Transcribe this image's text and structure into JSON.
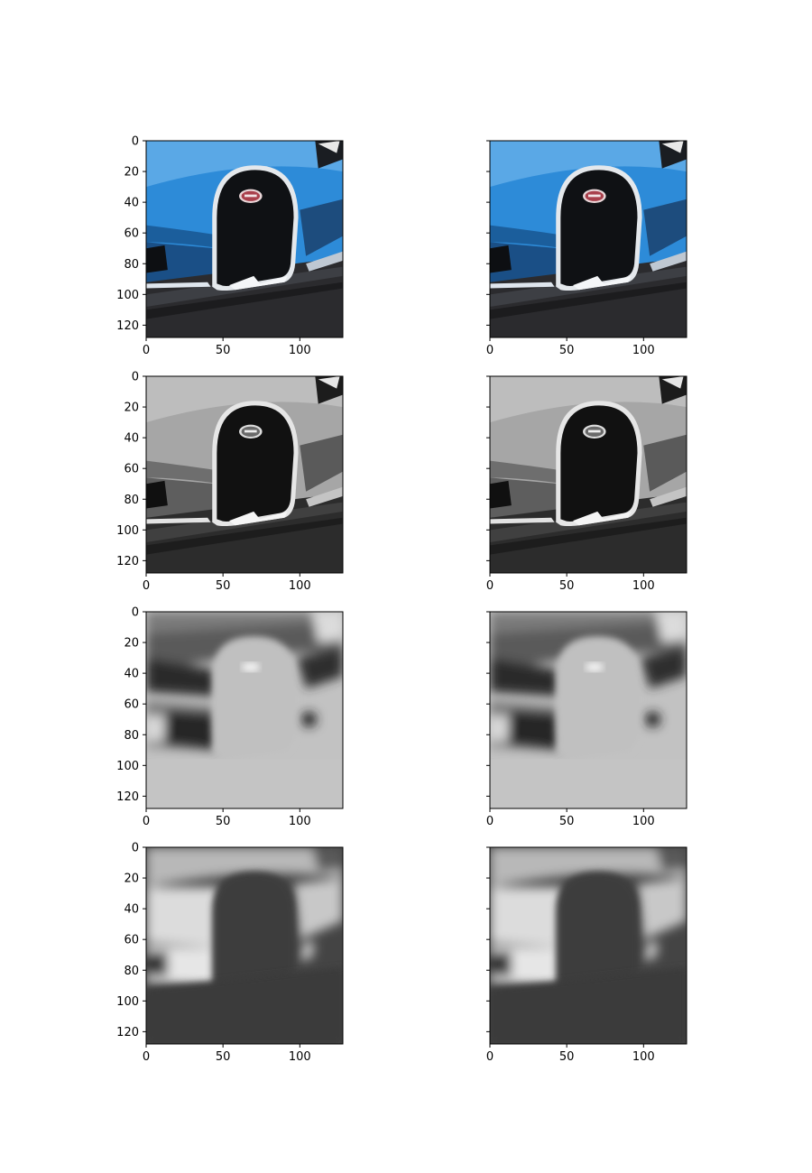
{
  "chart_data": {
    "type": "image_grid",
    "rows": 4,
    "cols": 2,
    "panels": [
      {
        "row": 0,
        "col": 0,
        "content": "bugatti-front-color",
        "xlim": [
          0,
          128
        ],
        "ylim": [
          128,
          0
        ]
      },
      {
        "row": 0,
        "col": 1,
        "content": "bugatti-front-color",
        "xlim": [
          0,
          128
        ],
        "ylim": [
          128,
          0
        ]
      },
      {
        "row": 1,
        "col": 0,
        "content": "bugatti-front-grayscale",
        "xlim": [
          0,
          128
        ],
        "ylim": [
          128,
          0
        ]
      },
      {
        "row": 1,
        "col": 1,
        "content": "bugatti-front-grayscale",
        "xlim": [
          0,
          128
        ],
        "ylim": [
          128,
          0
        ]
      },
      {
        "row": 2,
        "col": 0,
        "content": "bright-grille-channel-map",
        "xlim": [
          0,
          128
        ],
        "ylim": [
          128,
          0
        ]
      },
      {
        "row": 2,
        "col": 1,
        "content": "bright-grille-channel-map",
        "xlim": [
          0,
          128
        ],
        "ylim": [
          128,
          0
        ]
      },
      {
        "row": 3,
        "col": 0,
        "content": "dark-grille-channel-map",
        "xlim": [
          0,
          128
        ],
        "ylim": [
          128,
          0
        ]
      },
      {
        "row": 3,
        "col": 1,
        "content": "dark-grille-channel-map",
        "xlim": [
          0,
          128
        ],
        "ylim": [
          128,
          0
        ]
      }
    ],
    "x_ticks": [
      "0",
      "50",
      "100"
    ],
    "x_tick_values": [
      0,
      50,
      100
    ],
    "y_ticks": [
      "0",
      "20",
      "40",
      "60",
      "80",
      "100",
      "120"
    ],
    "y_tick_values": [
      0,
      20,
      40,
      60,
      80,
      100,
      120
    ],
    "y_tick_labels_shown_on_col": 0
  },
  "colors": {
    "car_blue": "#2f8fdc",
    "car_blue_dark": "#1d5fa0",
    "grille_black": "#101214",
    "chrome": "#e9ecef",
    "asphalt": "#2a2a2c",
    "gray_body": "#a8a8a8",
    "map_light": "#c4c4c4",
    "map_dark": "#3e3e3e"
  }
}
